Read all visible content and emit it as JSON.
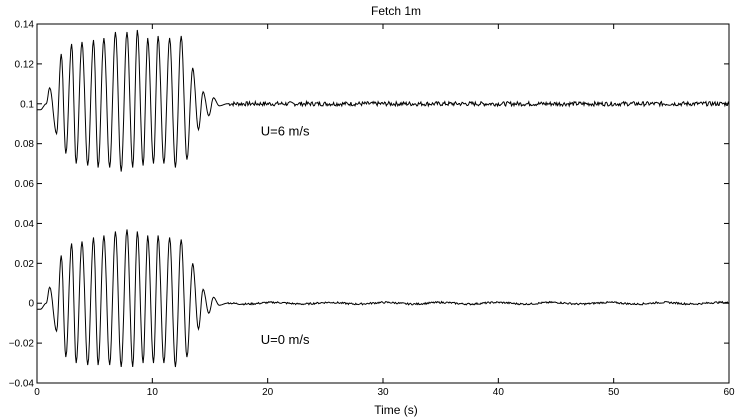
{
  "chart_data": {
    "type": "line",
    "title": "Fetch 1m",
    "xlabel": "Time (s)",
    "ylabel": "",
    "xlim": [
      0,
      60
    ],
    "ylim": [
      -0.04,
      0.14
    ],
    "grid": false,
    "x_ticks": [
      0,
      10,
      20,
      30,
      40,
      50,
      60
    ],
    "x_tick_labels": [
      "0",
      "10",
      "20",
      "30",
      "40",
      "50",
      "60"
    ],
    "y_ticks": [
      -0.04,
      -0.02,
      0,
      0.02,
      0.04,
      0.06,
      0.08,
      0.1,
      0.12,
      0.14
    ],
    "y_tick_labels": [
      "−0.04",
      "−0.02",
      "0",
      "0.02",
      "0.04",
      "0.06",
      "0.08",
      "0.1",
      "0.12",
      "0.14"
    ],
    "line_color": "#000000",
    "series": [
      {
        "name": "U=6 m/s",
        "baseline": 0.1,
        "peaks": [
          {
            "t": 0.3,
            "v": 0.097
          },
          {
            "t": 0.8,
            "v": 0.1
          },
          {
            "t": 1.1,
            "v": 0.108
          },
          {
            "t": 1.7,
            "v": 0.085
          },
          {
            "t": 2.1,
            "v": 0.125
          },
          {
            "t": 2.5,
            "v": 0.075
          },
          {
            "t": 3.0,
            "v": 0.13
          },
          {
            "t": 3.4,
            "v": 0.07
          },
          {
            "t": 3.9,
            "v": 0.131
          },
          {
            "t": 4.4,
            "v": 0.069
          },
          {
            "t": 4.9,
            "v": 0.132
          },
          {
            "t": 5.3,
            "v": 0.068
          },
          {
            "t": 5.8,
            "v": 0.133
          },
          {
            "t": 6.3,
            "v": 0.068
          },
          {
            "t": 6.8,
            "v": 0.136
          },
          {
            "t": 7.3,
            "v": 0.066
          },
          {
            "t": 7.8,
            "v": 0.136
          },
          {
            "t": 8.3,
            "v": 0.068
          },
          {
            "t": 8.7,
            "v": 0.137
          },
          {
            "t": 9.2,
            "v": 0.069
          },
          {
            "t": 9.6,
            "v": 0.133
          },
          {
            "t": 10.1,
            "v": 0.07
          },
          {
            "t": 10.5,
            "v": 0.134
          },
          {
            "t": 11.0,
            "v": 0.07
          },
          {
            "t": 11.5,
            "v": 0.133
          },
          {
            "t": 12.0,
            "v": 0.068
          },
          {
            "t": 12.5,
            "v": 0.134
          },
          {
            "t": 13.0,
            "v": 0.072
          },
          {
            "t": 13.5,
            "v": 0.118
          },
          {
            "t": 14.0,
            "v": 0.087
          },
          {
            "t": 14.4,
            "v": 0.106
          },
          {
            "t": 14.9,
            "v": 0.094
          },
          {
            "t": 15.3,
            "v": 0.103
          },
          {
            "t": 15.8,
            "v": 0.099
          },
          {
            "t": 16.5,
            "v": 0.1
          },
          {
            "t": 60,
            "v": 0.1
          }
        ]
      },
      {
        "name": "U=0 m/s",
        "baseline": 0.0,
        "peaks": [
          {
            "t": 0.3,
            "v": -0.003
          },
          {
            "t": 0.8,
            "v": 0.0
          },
          {
            "t": 1.1,
            "v": 0.008
          },
          {
            "t": 1.7,
            "v": -0.014
          },
          {
            "t": 2.1,
            "v": 0.024
          },
          {
            "t": 2.5,
            "v": -0.027
          },
          {
            "t": 3.0,
            "v": 0.03
          },
          {
            "t": 3.4,
            "v": -0.03
          },
          {
            "t": 3.9,
            "v": 0.031
          },
          {
            "t": 4.4,
            "v": -0.031
          },
          {
            "t": 4.9,
            "v": 0.033
          },
          {
            "t": 5.3,
            "v": -0.031
          },
          {
            "t": 5.8,
            "v": 0.034
          },
          {
            "t": 6.3,
            "v": -0.031
          },
          {
            "t": 6.8,
            "v": 0.036
          },
          {
            "t": 7.3,
            "v": -0.032
          },
          {
            "t": 7.8,
            "v": 0.037
          },
          {
            "t": 8.3,
            "v": -0.032
          },
          {
            "t": 8.7,
            "v": 0.036
          },
          {
            "t": 9.2,
            "v": -0.03
          },
          {
            "t": 9.6,
            "v": 0.034
          },
          {
            "t": 10.1,
            "v": -0.03
          },
          {
            "t": 10.5,
            "v": 0.034
          },
          {
            "t": 11.0,
            "v": -0.03
          },
          {
            "t": 11.5,
            "v": 0.033
          },
          {
            "t": 12.0,
            "v": -0.032
          },
          {
            "t": 12.5,
            "v": 0.032
          },
          {
            "t": 13.0,
            "v": -0.027
          },
          {
            "t": 13.5,
            "v": 0.02
          },
          {
            "t": 14.0,
            "v": -0.013
          },
          {
            "t": 14.4,
            "v": 0.007
          },
          {
            "t": 14.9,
            "v": -0.005
          },
          {
            "t": 15.3,
            "v": 0.003
          },
          {
            "t": 15.8,
            "v": -0.001
          },
          {
            "t": 16.5,
            "v": 0.0
          },
          {
            "t": 60,
            "v": 0.0
          }
        ]
      }
    ],
    "annotations": [
      {
        "text": "U=6 m/s",
        "x": 19.4,
        "y": 0.084
      },
      {
        "text": "U=0 m/s",
        "x": 19.4,
        "y": -0.0205
      }
    ]
  }
}
